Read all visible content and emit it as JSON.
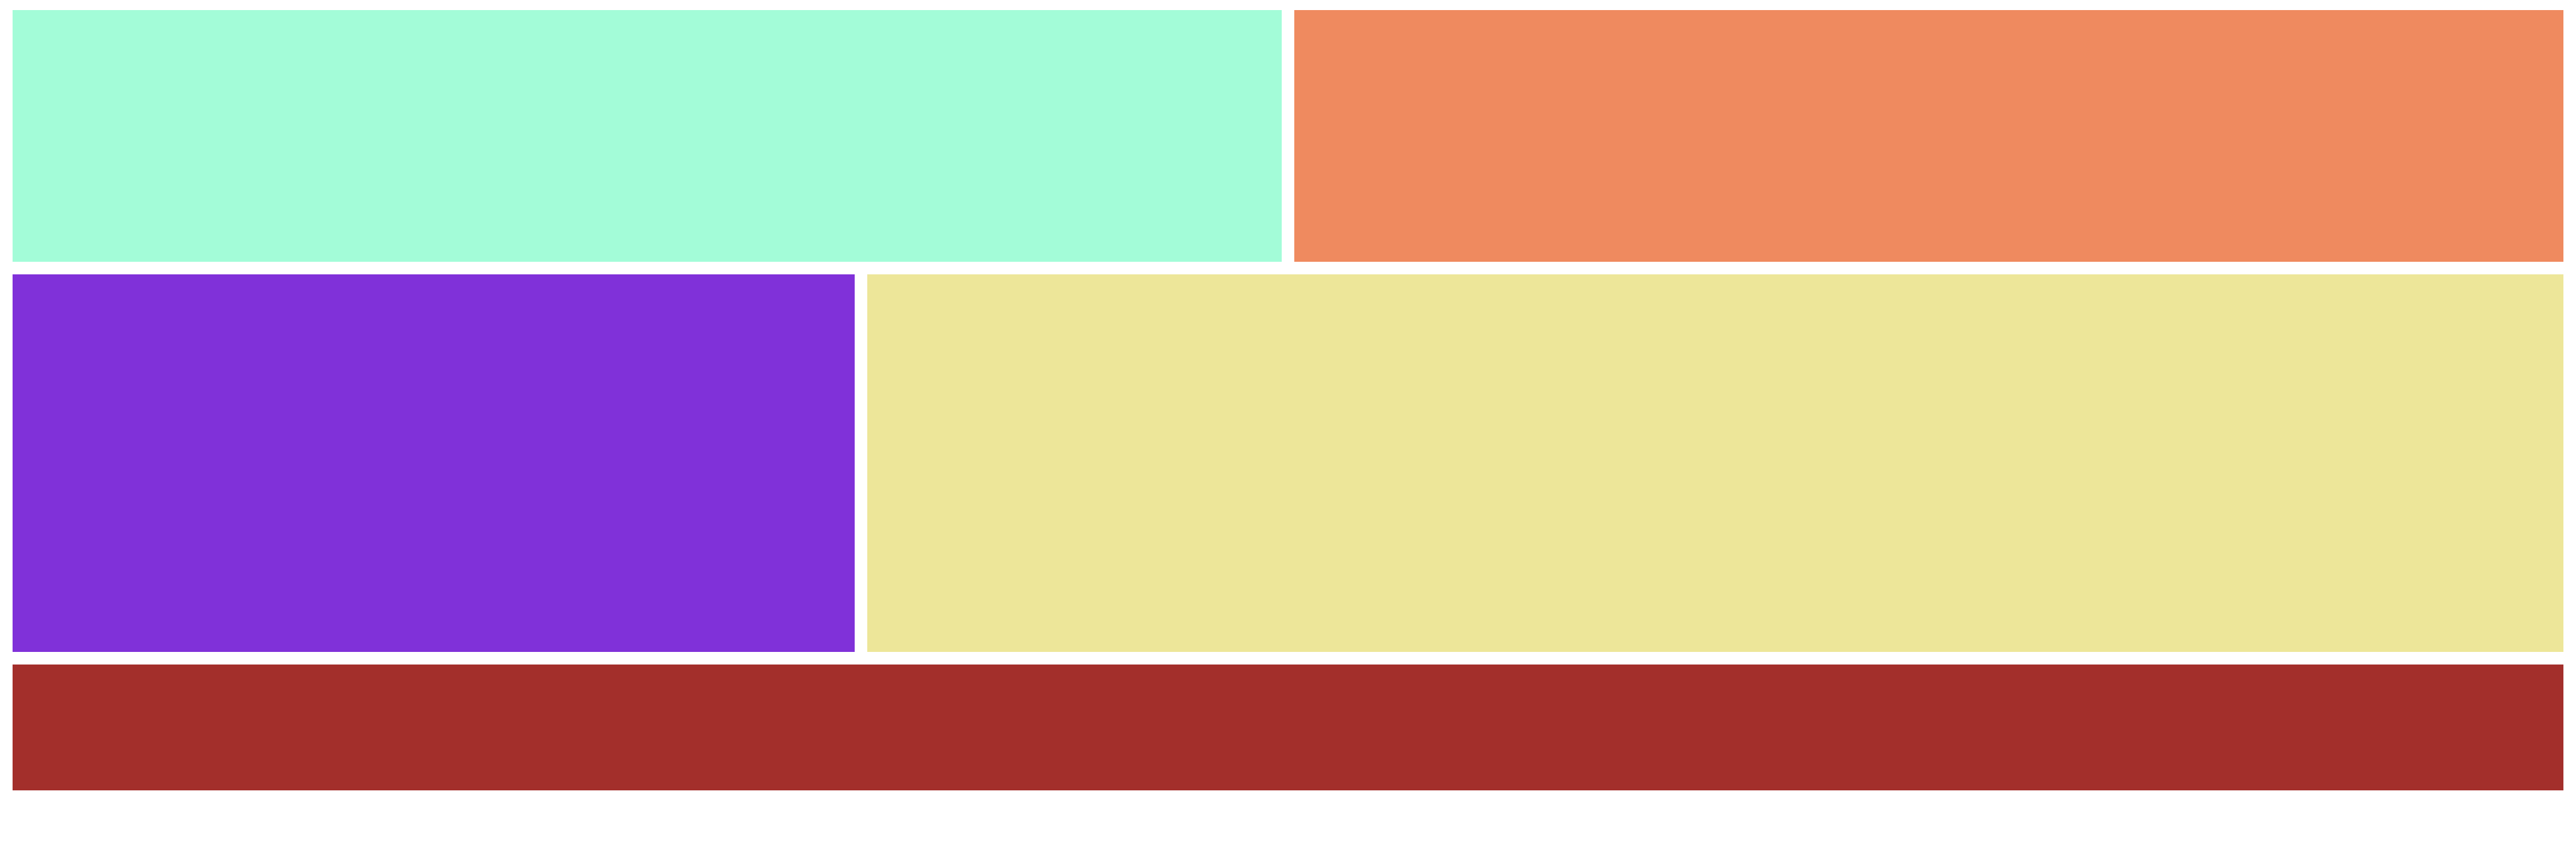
{
  "colors": {
    "background": "#ffffff",
    "mint": "#a3fcd8",
    "salmon": "#ef8a5f",
    "purple": "#8031d9",
    "khaki": "#ede699",
    "brown": "#a32f2b"
  }
}
